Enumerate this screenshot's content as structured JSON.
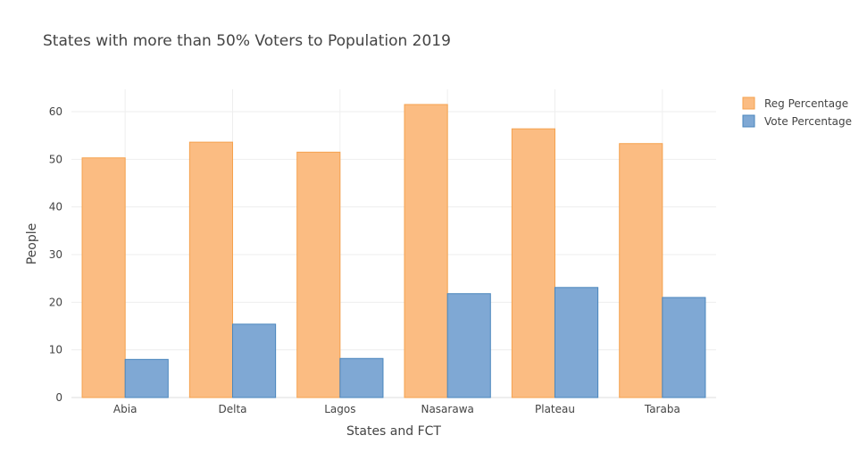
{
  "chart_data": {
    "type": "bar",
    "title": "States with more than 50% Voters to Population 2019",
    "xlabel": "States and FCT",
    "ylabel": "People",
    "categories": [
      "Abia",
      "Delta",
      "Lagos",
      "Nasarawa",
      "Plateau",
      "Taraba"
    ],
    "series": [
      {
        "name": "Reg Percentage",
        "values": [
          50.3,
          53.6,
          51.5,
          61.5,
          56.4,
          53.3
        ],
        "color": "#fbbc82",
        "stroke": "#f5a24e"
      },
      {
        "name": "Vote Percentage",
        "values": [
          8.0,
          15.4,
          8.2,
          21.8,
          23.1,
          21.0
        ],
        "color": "#7fa8d4",
        "stroke": "#4a86bd"
      }
    ],
    "ylim": [
      0,
      65
    ],
    "yticks": [
      0,
      10,
      20,
      30,
      40,
      50,
      60
    ],
    "grid": true,
    "legend_position": "top-right"
  }
}
